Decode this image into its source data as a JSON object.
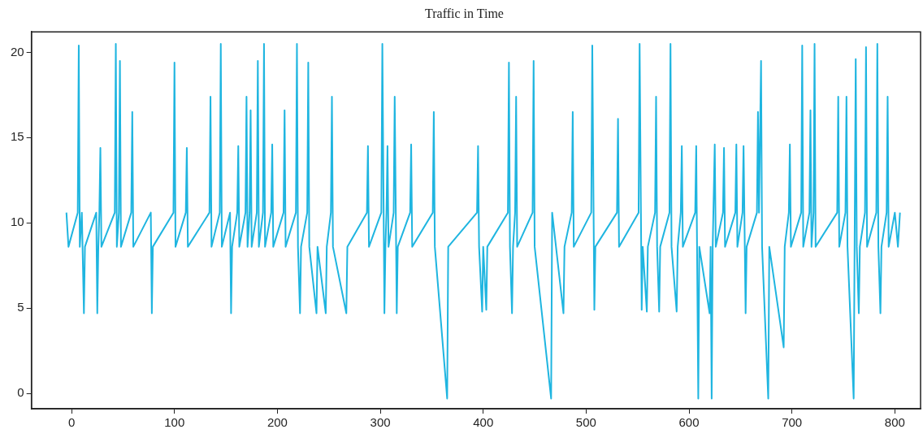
{
  "chart_data": {
    "type": "line",
    "title": "Traffic in Time",
    "x": [
      -5,
      -3,
      6,
      7,
      8,
      10,
      12,
      13,
      24,
      25,
      26,
      27,
      28,
      29,
      42,
      43,
      44,
      46,
      47,
      48,
      58,
      59,
      60,
      77,
      78,
      79,
      99,
      100,
      101,
      111,
      112,
      113,
      134,
      135,
      136,
      144,
      145,
      146,
      154,
      155,
      156,
      161,
      162,
      163,
      169,
      170,
      171,
      173,
      174,
      175,
      180,
      181,
      182,
      186,
      187,
      188,
      194,
      195,
      196,
      206,
      207,
      208,
      218,
      219,
      220,
      222,
      223,
      229,
      230,
      231,
      238,
      239,
      247,
      248,
      252,
      253,
      254,
      267,
      268,
      287,
      288,
      289,
      301,
      302,
      304,
      305,
      306,
      307,
      308,
      313,
      314,
      316,
      317,
      329,
      330,
      331,
      351,
      352,
      353,
      365,
      366,
      394,
      395,
      396,
      399,
      400,
      403,
      404,
      424,
      425,
      426,
      428,
      429,
      431,
      432,
      433,
      448,
      449,
      450,
      466,
      467,
      478,
      479,
      486,
      487,
      488,
      505,
      506,
      508,
      509,
      530,
      531,
      532,
      551,
      552,
      554,
      555,
      559,
      560,
      567,
      568,
      569,
      571,
      572,
      581,
      582,
      583,
      588,
      589,
      592,
      593,
      594,
      606,
      607,
      609,
      610,
      620,
      621,
      622,
      623,
      625,
      626,
      633,
      634,
      635,
      645,
      646,
      647,
      652,
      653,
      655,
      656,
      666,
      667,
      668,
      670,
      671,
      677,
      678,
      692,
      693,
      697,
      698,
      699,
      709,
      710,
      711,
      717,
      718,
      719,
      721,
      722,
      723,
      744,
      745,
      746,
      752,
      753,
      754,
      760,
      762,
      763,
      765,
      766,
      771,
      772,
      773,
      782,
      783,
      784,
      786,
      787,
      792,
      793,
      794,
      800,
      803,
      805
    ],
    "series": [
      {
        "color": "#1fb5e0",
        "values": [
          10.6,
          8.6,
          10.6,
          20.4,
          8.6,
          10.6,
          4.7,
          8.6,
          10.6,
          4.7,
          8.6,
          10.6,
          14.4,
          8.6,
          10.6,
          20.5,
          8.6,
          10.6,
          19.5,
          8.6,
          10.6,
          16.5,
          8.6,
          10.6,
          4.7,
          8.6,
          10.6,
          19.4,
          8.6,
          10.6,
          14.4,
          8.6,
          10.6,
          17.4,
          8.6,
          10.6,
          20.5,
          8.6,
          10.6,
          4.7,
          8.6,
          10.6,
          14.5,
          8.6,
          10.6,
          17.4,
          8.6,
          10.6,
          16.6,
          8.6,
          10.6,
          19.5,
          8.6,
          10.6,
          20.5,
          8.6,
          10.6,
          14.6,
          8.6,
          10.6,
          16.6,
          8.6,
          10.6,
          20.5,
          8.6,
          4.7,
          8.6,
          10.6,
          19.4,
          8.6,
          4.7,
          8.6,
          4.7,
          8.6,
          10.6,
          17.4,
          8.6,
          4.7,
          8.6,
          10.6,
          14.5,
          8.6,
          10.6,
          20.5,
          4.7,
          8.6,
          10.6,
          14.5,
          8.6,
          10.6,
          17.4,
          4.7,
          8.6,
          10.6,
          14.6,
          8.6,
          10.6,
          16.5,
          8.6,
          -0.3,
          8.6,
          10.6,
          14.5,
          8.6,
          4.8,
          8.6,
          4.9,
          8.6,
          10.6,
          19.4,
          8.6,
          4.7,
          8.6,
          10.6,
          17.4,
          8.6,
          10.6,
          19.5,
          8.6,
          -0.3,
          10.6,
          4.7,
          8.6,
          10.6,
          16.5,
          8.6,
          10.6,
          20.4,
          4.9,
          8.6,
          10.6,
          16.1,
          8.6,
          10.6,
          20.5,
          4.9,
          8.6,
          4.8,
          8.6,
          10.6,
          17.4,
          8.6,
          4.8,
          8.6,
          10.6,
          20.5,
          8.6,
          4.8,
          8.6,
          10.6,
          14.5,
          8.6,
          10.6,
          14.5,
          -0.3,
          8.6,
          4.7,
          8.6,
          -0.3,
          8.6,
          14.6,
          8.6,
          10.6,
          14.4,
          8.6,
          10.6,
          14.6,
          8.6,
          10.6,
          14.5,
          4.7,
          8.6,
          10.6,
          16.5,
          10.6,
          19.5,
          8.6,
          -0.3,
          8.6,
          2.7,
          8.6,
          10.6,
          14.6,
          8.6,
          10.6,
          20.4,
          8.6,
          10.6,
          16.6,
          8.6,
          10.6,
          20.5,
          8.6,
          10.6,
          17.4,
          8.6,
          10.6,
          17.4,
          8.6,
          -0.3,
          19.6,
          8.6,
          4.7,
          8.6,
          10.6,
          20.3,
          8.6,
          10.6,
          20.5,
          8.6,
          4.7,
          8.6,
          10.6,
          17.4,
          8.6,
          10.6,
          8.6,
          10.6
        ]
      }
    ],
    "xlim": [
      -39,
      825
    ],
    "xticks": [
      0,
      100,
      200,
      300,
      400,
      500,
      600,
      700,
      800
    ],
    "ylim": [
      -0.9,
      21.2
    ],
    "yticks": [
      0,
      5,
      10,
      15,
      20
    ],
    "legend": false,
    "grid": false,
    "marker": "none",
    "line_style": "solid"
  }
}
